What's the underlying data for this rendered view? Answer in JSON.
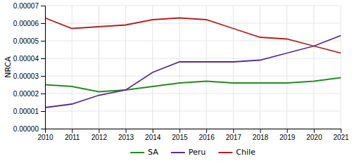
{
  "chart_data": {
    "type": "line",
    "y_label": "NRCA",
    "x": [
      2010,
      2011,
      2012,
      2013,
      2014,
      2015,
      2016,
      2017,
      2018,
      2019,
      2020,
      2021
    ],
    "series": [
      {
        "name": "SA",
        "color": "#228B22",
        "values": [
          2.5e-05,
          2.4e-05,
          2.1e-05,
          2.2e-05,
          2.4e-05,
          2.6e-05,
          2.7e-05,
          2.6e-05,
          2.6e-05,
          2.6e-05,
          2.7e-05,
          2.9e-05
        ]
      },
      {
        "name": "Peru",
        "color": "#5B2D8E",
        "values": [
          1.2e-05,
          1.4e-05,
          1.9e-05,
          2.2e-05,
          3.2e-05,
          3.8e-05,
          3.8e-05,
          3.8e-05,
          3.9e-05,
          4.3e-05,
          4.7e-05,
          5.3e-05
        ]
      },
      {
        "name": "Chile",
        "color": "#B22222",
        "values": [
          6.3e-05,
          5.7e-05,
          5.8e-05,
          5.9e-05,
          6.2e-05,
          6.3e-05,
          6.2e-05,
          5.7e-05,
          5.2e-05,
          5.1e-05,
          4.7e-05,
          4.3e-05
        ]
      }
    ],
    "xlim": [
      2010,
      2021
    ],
    "xticks": [
      2010,
      2011,
      2012,
      2013,
      2014,
      2015,
      2016,
      2017,
      2018,
      2019,
      2020,
      2021
    ],
    "ylim": [
      0.0,
      7e-05
    ],
    "yticks": [
      {
        "value": 0.0,
        "label": "0.00000"
      },
      {
        "value": 1e-05,
        "label": "0.00001"
      },
      {
        "value": 2e-05,
        "label": "0.00002"
      },
      {
        "value": 3e-05,
        "label": "0.00003"
      },
      {
        "value": 4e-05,
        "label": "0.00004"
      },
      {
        "value": 5e-05,
        "label": "0.00005"
      },
      {
        "value": 6e-05,
        "label": "0.00006"
      },
      {
        "value": 7e-05,
        "label": "0.00007"
      }
    ],
    "grid": true,
    "legend": "bottom"
  }
}
